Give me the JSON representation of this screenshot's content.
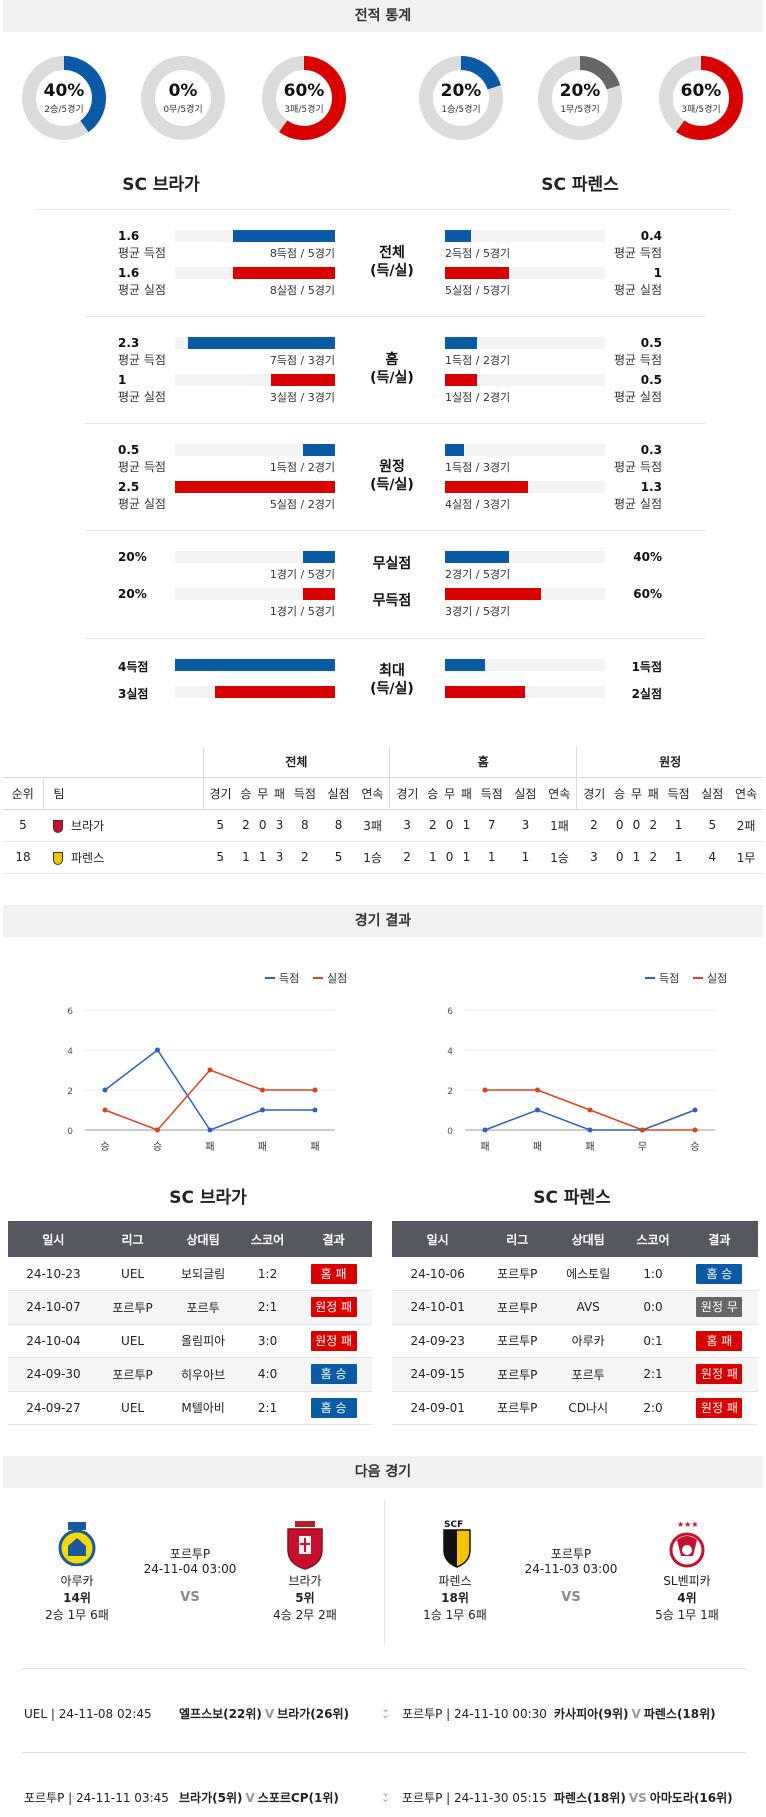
{
  "sections": {
    "stats": "전적 통계",
    "results": "경기 결과",
    "next": "다음 경기"
  },
  "teams": {
    "home": "SC 브라가",
    "away": "SC 파렌스"
  },
  "donuts": [
    {
      "pct": "40%",
      "sub": "2승/5경기",
      "value": 0.4,
      "color": "#0b5aa6"
    },
    {
      "pct": "0%",
      "sub": "0무/5경기",
      "value": 0.0,
      "color": "#666666"
    },
    {
      "pct": "60%",
      "sub": "3패/5경기",
      "value": 0.6,
      "color": "#d90000"
    },
    {
      "pct": "20%",
      "sub": "1승/5경기",
      "value": 0.2,
      "color": "#0b5aa6"
    },
    {
      "pct": "20%",
      "sub": "1무/5경기",
      "value": 0.2,
      "color": "#666666"
    },
    {
      "pct": "60%",
      "sub": "3패/5경기",
      "value": 0.6,
      "color": "#d90000"
    }
  ],
  "groups": [
    {
      "mid": [
        "전체",
        "(득/실)"
      ],
      "rows": [
        {
          "lv": "1.6",
          "ll": "평균 득점",
          "lc": "8득점 / 5경기",
          "lf": 0.64,
          "rv": "0.4",
          "rl": "평균 득점",
          "rc": "2득점 / 5경기",
          "rf": 0.16,
          "color": "blue"
        },
        {
          "lv": "1.6",
          "ll": "평균 실점",
          "lc": "8실점 / 5경기",
          "lf": 0.64,
          "rv": "1",
          "rl": "평균 실점",
          "rc": "5실점 / 5경기",
          "rf": 0.4,
          "color": "red"
        }
      ]
    },
    {
      "mid": [
        "홈",
        "(득/실)"
      ],
      "rows": [
        {
          "lv": "2.3",
          "ll": "평균 득점",
          "lc": "7득점 / 3경기",
          "lf": 0.92,
          "rv": "0.5",
          "rl": "평균 득점",
          "rc": "1득점 / 2경기",
          "rf": 0.2,
          "color": "blue"
        },
        {
          "lv": "1",
          "ll": "평균 실점",
          "lc": "3실점 / 3경기",
          "lf": 0.4,
          "rv": "0.5",
          "rl": "평균 실점",
          "rc": "1실점 / 2경기",
          "rf": 0.2,
          "color": "red"
        }
      ]
    },
    {
      "mid": [
        "원정",
        "(득/실)"
      ],
      "rows": [
        {
          "lv": "0.5",
          "ll": "평균 득점",
          "lc": "1득점 / 2경기",
          "lf": 0.2,
          "rv": "0.3",
          "rl": "평균 득점",
          "rc": "1득점 / 3경기",
          "rf": 0.12,
          "color": "blue"
        },
        {
          "lv": "2.5",
          "ll": "평균 실점",
          "lc": "5실점 / 2경기",
          "lf": 1.0,
          "rv": "1.3",
          "rl": "평균 실점",
          "rc": "4실점 / 3경기",
          "rf": 0.52,
          "color": "red"
        }
      ]
    }
  ],
  "pct_rows": [
    {
      "mid": "무실점",
      "lv": "20%",
      "lc": "1경기 / 5경기",
      "lf": 0.2,
      "rv": "40%",
      "rc": "2경기 / 5경기",
      "rf": 0.4,
      "color": "blue"
    },
    {
      "mid": "무득점",
      "lv": "20%",
      "lc": "1경기 / 5경기",
      "lf": 0.2,
      "rv": "60%",
      "rc": "3경기 / 5경기",
      "rf": 0.6,
      "color": "red"
    }
  ],
  "max_rows": {
    "mid": [
      "최대",
      "(득/실)"
    ],
    "rows": [
      {
        "lv": "4득점",
        "lf": 1.0,
        "rv": "1득점",
        "rf": 0.25,
        "color": "blue"
      },
      {
        "lv": "3실점",
        "lf": 0.75,
        "rv": "2실점",
        "rf": 0.5,
        "color": "red"
      }
    ]
  },
  "standings": {
    "groups": [
      "전체",
      "홈",
      "원정"
    ],
    "rank_h": "순위",
    "team_h": "팀",
    "cols": [
      "경기",
      "승",
      "무",
      "패",
      "득점",
      "실점",
      "연속"
    ],
    "rows": [
      {
        "rank": "5",
        "team": "브라가",
        "all": [
          "5",
          "2",
          "0",
          "3",
          "8",
          "8",
          "3패"
        ],
        "home": [
          "3",
          "2",
          "0",
          "1",
          "7",
          "3",
          "1패"
        ],
        "away": [
          "2",
          "0",
          "0",
          "2",
          "1",
          "5",
          "2패"
        ]
      },
      {
        "rank": "18",
        "team": "파렌스",
        "all": [
          "5",
          "1",
          "1",
          "3",
          "2",
          "5",
          "1승"
        ],
        "home": [
          "2",
          "1",
          "0",
          "1",
          "1",
          "1",
          "1승"
        ],
        "away": [
          "3",
          "0",
          "1",
          "2",
          "1",
          "4",
          "1무"
        ]
      }
    ]
  },
  "chart_data": [
    {
      "type": "line",
      "categories": [
        "승",
        "승",
        "패",
        "패",
        "패"
      ],
      "ylim": [
        0,
        6
      ],
      "yticks": [
        0,
        2,
        4,
        6
      ],
      "series": [
        {
          "name": "득점",
          "values": [
            2,
            4,
            0,
            1,
            1
          ],
          "color": "#2f5fc4"
        },
        {
          "name": "실점",
          "values": [
            1,
            0,
            3,
            2,
            2
          ],
          "color": "#e0401c"
        }
      ],
      "legend": "top-right"
    },
    {
      "type": "line",
      "categories": [
        "패",
        "패",
        "패",
        "무",
        "승"
      ],
      "ylim": [
        0,
        6
      ],
      "yticks": [
        0,
        2,
        4,
        6
      ],
      "series": [
        {
          "name": "득점",
          "values": [
            0,
            1,
            0,
            0,
            1
          ],
          "color": "#2f5fc4"
        },
        {
          "name": "실점",
          "values": [
            2,
            2,
            1,
            0,
            0
          ],
          "color": "#e0401c"
        }
      ],
      "legend": "top-right"
    }
  ],
  "results_headers": [
    "일시",
    "리그",
    "상대팀",
    "스코어",
    "결과"
  ],
  "results_home": [
    {
      "date": "24-10-23",
      "league": "UEL",
      "opp": "보되글림",
      "score": "1:2",
      "res": "홈 패",
      "kind": "lose"
    },
    {
      "date": "24-10-07",
      "league": "포르투P",
      "opp": "포르투",
      "score": "2:1",
      "res": "원정 패",
      "kind": "lose"
    },
    {
      "date": "24-10-04",
      "league": "UEL",
      "opp": "올림피아",
      "score": "3:0",
      "res": "원정 패",
      "kind": "lose"
    },
    {
      "date": "24-09-30",
      "league": "포르투P",
      "opp": "히우아브",
      "score": "4:0",
      "res": "홈 승",
      "kind": "win"
    },
    {
      "date": "24-09-27",
      "league": "UEL",
      "opp": "M텔아비",
      "score": "2:1",
      "res": "홈 승",
      "kind": "win"
    }
  ],
  "results_away": [
    {
      "date": "24-10-06",
      "league": "포르투P",
      "opp": "에스토릴",
      "score": "1:0",
      "res": "홈 승",
      "kind": "win"
    },
    {
      "date": "24-10-01",
      "league": "포르투P",
      "opp": "AVS",
      "score": "0:0",
      "res": "원정 무",
      "kind": "draw"
    },
    {
      "date": "24-09-23",
      "league": "포르투P",
      "opp": "아루카",
      "score": "0:1",
      "res": "홈 패",
      "kind": "lose"
    },
    {
      "date": "24-09-15",
      "league": "포르투P",
      "opp": "포르투",
      "score": "2:1",
      "res": "원정 패",
      "kind": "lose"
    },
    {
      "date": "24-09-01",
      "league": "포르투P",
      "opp": "CD나시",
      "score": "2:0",
      "res": "원정 패",
      "kind": "lose"
    }
  ],
  "next": {
    "left": {
      "league": "포르투P",
      "time": "24-11-04 03:00",
      "vs": "VS",
      "a": {
        "name": "아루카",
        "rank": "14위",
        "rec": "2승 1무 6패"
      },
      "b": {
        "name": "브라가",
        "rank": "5위",
        "rec": "4승 2무 2패"
      }
    },
    "right": {
      "league": "포르투P",
      "time": "24-11-03 03:00",
      "vs": "VS",
      "a": {
        "name": "파렌스",
        "rank": "18위",
        "rec": "1승 1무 6패"
      },
      "b": {
        "name": "SL벤피카",
        "rank": "4위",
        "rec": "5승 1무 1패"
      }
    }
  },
  "upcoming": [
    {
      "l1": "UEL | 24-11-08 02:45",
      "t1a": "엘프스보(22위)",
      "v1": "V",
      "t1b": "브라가(26위)",
      "l2": "포르투P | 24-11-10 00:30",
      "t2a": "카사피아(9위)",
      "v2": "V",
      "t2b": "파렌스(18위)"
    },
    {
      "l1": "포르투P | 24-11-11 03:45",
      "t1a": "브라가(5위)",
      "v1": "V",
      "t1b": "스포르CP(1위)",
      "l2": "포르투P | 24-11-30 05:15",
      "t2a": "파렌스(18위)",
      "v2": "VS",
      "t2b": "아마도라(16위)"
    }
  ]
}
